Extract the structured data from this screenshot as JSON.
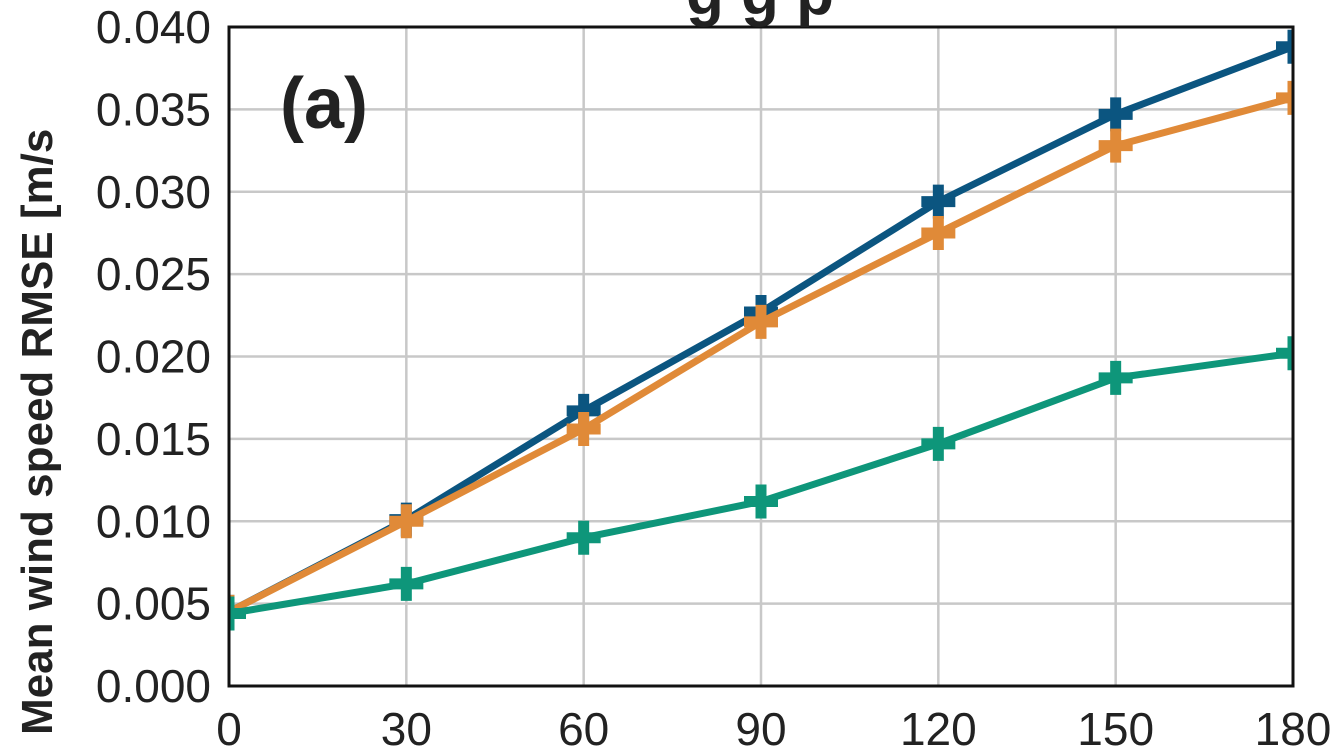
{
  "chart_data": {
    "type": "line",
    "title": "g g p",
    "panel_label": "(a)",
    "xlabel": "",
    "ylabel": "Mean wind speed RMSE [m/s",
    "xlim": [
      0,
      180
    ],
    "ylim": [
      0.0,
      0.04
    ],
    "x_ticks": [
      "0",
      "30",
      "60",
      "90",
      "120",
      "150",
      "180"
    ],
    "y_ticks": [
      "0.000",
      "0.005",
      "0.010",
      "0.015",
      "0.020",
      "0.025",
      "0.030",
      "0.035",
      "0.040"
    ],
    "grid": true,
    "legend": "none",
    "x": [
      0,
      30,
      60,
      90,
      120,
      150,
      180
    ],
    "series": [
      {
        "color": "#0b5580",
        "values": [
          0.0045,
          0.0101,
          0.0167,
          0.0227,
          0.0294,
          0.0347,
          0.0388
        ]
      },
      {
        "color": "#e08a38",
        "values": [
          0.0045,
          0.01,
          0.0156,
          0.0221,
          0.0275,
          0.0328,
          0.0357
        ]
      },
      {
        "color": "#0e967a",
        "values": [
          0.0044,
          0.0062,
          0.009,
          0.0112,
          0.0147,
          0.0187,
          0.0202
        ]
      }
    ]
  }
}
